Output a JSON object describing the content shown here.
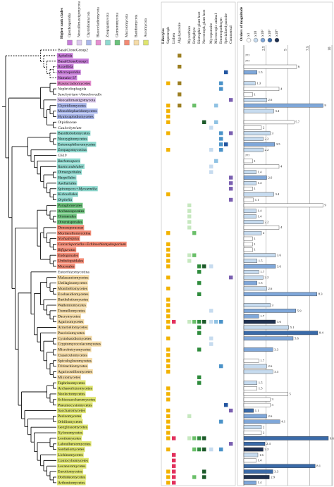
{
  "chart_data": {
    "type": "phylogeny-bar",
    "clade_header": "Higher rank clades",
    "clades": [
      {
        "name": "Opisthosporidia",
        "color": "#c77dd9"
      },
      {
        "name": "Neocallimastigomycota",
        "color": "#dccbee"
      },
      {
        "name": "Chytridiomycota",
        "color": "#a9b6ea"
      },
      {
        "name": "Blastocladiomycota",
        "color": "#e58fcf"
      },
      {
        "name": "Zoopagomycota",
        "color": "#8fd9cf"
      },
      {
        "name": "Glomeromycota",
        "color": "#6cc27c"
      },
      {
        "name": "Mucoromycota",
        "color": "#f28a74"
      },
      {
        "name": "Basidiomycota",
        "color": "#f5dca8"
      },
      {
        "name": "Ascomycota",
        "color": "#dfe56f"
      }
    ],
    "lifestyle_header": "Lifestyles",
    "lifestyles": [
      {
        "name": "Saprotroph",
        "color": "#f2b200"
      },
      {
        "name": "Lichen",
        "color": "#e2305c"
      },
      {
        "name": "Algal parasite",
        "color": "#9c7f22"
      },
      {
        "name": "Mycorrhiza",
        "color": "#c6e8bf"
      },
      {
        "name": "Endophyte",
        "color": "#6abf69"
      },
      {
        "name": "Biotrophic plant host",
        "color": "#2e8b3c"
      },
      {
        "name": "Necrotroph, plant host",
        "color": "#1d5a2a"
      },
      {
        "name": "Mycoparasite",
        "color": "#c6dbef"
      },
      {
        "name": "Microscopic animal",
        "color": "#8fc2e3"
      },
      {
        "name": "Entomopathogen",
        "color": "#4a92c8"
      },
      {
        "name": "Specialized parasite",
        "color": "#2255a0"
      },
      {
        "name": "Commensal",
        "color": "#7a5fb0"
      }
    ],
    "magnitude_header": "Orders of magnitude",
    "magnitudes": [
      {
        "name": "x1",
        "color": "#ffffff"
      },
      {
        "name": "x10",
        "color": "#c6dbef"
      },
      {
        "name": "x10²",
        "color": "#7fa7d9"
      },
      {
        "name": "x10³",
        "color": "#3a6aa8"
      },
      {
        "name": "x10⁴",
        "color": "#1f3050"
      }
    ],
    "xlim": [
      0,
      10
    ],
    "xticks": [
      2.5,
      5,
      7.5,
      10
    ],
    "taxa": [
      {
        "name": "BasalCloneGroup2"
      },
      {
        "name": "Aphelida",
        "clade": 0,
        "value": null,
        "value_label": "???",
        "lifestyles": [
          2
        ]
      },
      {
        "name": "BasalCloneGroup1",
        "clade": 0,
        "value": null,
        "value_label": "???"
      },
      {
        "name": "Rozellida",
        "clade": 0,
        "value": 6,
        "magnitude": 0,
        "lifestyles": [
          2
        ]
      },
      {
        "name": "Microsporidia",
        "clade": 0,
        "value": 1.5,
        "magnitude": 2,
        "lifestyles": [
          10
        ]
      },
      {
        "name": "Namako-37",
        "clade": 0
      },
      {
        "name": "Blastocladiomycetes",
        "clade": 3,
        "value": 1.3,
        "magnitude": 1,
        "lifestyles": [
          0,
          2,
          9
        ]
      },
      {
        "name": "Nephridiophagida",
        "value": 4,
        "magnitude": 0,
        "lifestyles": [
          9
        ]
      },
      {
        "name": "Sanchytrium+Amoeboradix",
        "italic": true,
        "value": 1,
        "magnitude": 0,
        "lifestyles": [
          2
        ]
      },
      {
        "name": "Neocallimastigomycota",
        "clade": 1,
        "value": 2.6,
        "magnitude": 1,
        "lifestyles": [
          11
        ]
      },
      {
        "name": "Chytridiomycetes",
        "clade": 2,
        "value": 9,
        "magnitude": 2,
        "lifestyles": [
          0,
          2,
          4,
          8
        ]
      },
      {
        "name": "Monoblepharidomycetes",
        "clade": 2,
        "value": 3.4,
        "magnitude": 1,
        "lifestyles": [
          0
        ]
      },
      {
        "name": "Hyaloraphidiomycetes",
        "clade": 2,
        "lifestyles": [
          0
        ]
      },
      {
        "name": "Olpidiaceae",
        "value": 5.7,
        "magnitude": 0,
        "lifestyles": [
          0,
          6,
          8
        ]
      },
      {
        "name": "Caulochytrium",
        "italic": true,
        "value": 2,
        "magnitude": 0,
        "lifestyles": [
          7
        ]
      },
      {
        "name": "Basidiobolomycetes",
        "clade": 4,
        "value": 3,
        "magnitude": 1,
        "lifestyles": [
          0,
          9,
          11
        ]
      },
      {
        "name": "Neozygitomycetes",
        "clade": 4,
        "value": 2.2,
        "magnitude": 1,
        "lifestyles": [
          9
        ]
      },
      {
        "name": "Entomophthoromycetes",
        "clade": 4,
        "value": 3.5,
        "magnitude": 2,
        "lifestyles": [
          9,
          10
        ]
      },
      {
        "name": "Zoopagomycotina",
        "clade": 4,
        "value": 2.2,
        "magnitude": 1,
        "lifestyles": [
          0,
          7,
          9
        ]
      },
      {
        "name": "GS19",
        "italic": true,
        "value": null,
        "value_label": "???"
      },
      {
        "name": "Barbatospora",
        "clade": 4,
        "italic": true,
        "value": 1,
        "magnitude": 0,
        "lifestyles": [
          8
        ]
      },
      {
        "name": "Ramicandelaber",
        "clade": 4,
        "italic": true,
        "value": 4,
        "magnitude": 0,
        "lifestyles": [
          7
        ]
      },
      {
        "name": "Dimargaritales",
        "clade": 4,
        "value": 1.4,
        "magnitude": 1,
        "lifestyles": [
          7
        ]
      },
      {
        "name": "Harpellales",
        "clade": 4,
        "value": 2.6,
        "magnitude": 2,
        "lifestyles": [
          11
        ]
      },
      {
        "name": "Asellariales",
        "clade": 4,
        "value": 1.4,
        "magnitude": 1,
        "lifestyles": [
          11
        ]
      },
      {
        "name": "Spiromyces+Mycoemilia",
        "clade": 4,
        "italic": true,
        "value": 1,
        "magnitude": 0,
        "lifestyles": [
          11
        ]
      },
      {
        "name": "Kickxellales",
        "clade": 4,
        "value": 3.4,
        "magnitude": 1,
        "lifestyles": [
          0
        ]
      },
      {
        "name": "Orphella",
        "clade": 4,
        "italic": true,
        "value": 1.1,
        "magnitude": 0,
        "lifestyles": [
          11
        ]
      },
      {
        "name": "Paraglomerales",
        "clade": 5,
        "value": 9,
        "magnitude": 0,
        "lifestyles": [
          3
        ]
      },
      {
        "name": "Archaeosporales",
        "clade": 5,
        "value": 1.4,
        "magnitude": 1,
        "lifestyles": [
          3
        ]
      },
      {
        "name": "Glomerales",
        "clade": 5,
        "value": 1.4,
        "magnitude": 1,
        "lifestyles": [
          3
        ]
      },
      {
        "name": "Diversisporales",
        "clade": 5,
        "value": 2.2,
        "magnitude": 1,
        "lifestyles": [
          3
        ]
      },
      {
        "name": "Densosporaceae",
        "clade": 6,
        "value": 4,
        "magnitude": 0,
        "lifestyles": [
          3
        ]
      },
      {
        "name": "Mortierellomycotina",
        "clade": 6,
        "value": 2,
        "magnitude": 1,
        "lifestyles": [
          0,
          4
        ]
      },
      {
        "name": "Nothadelphia",
        "clade": 6,
        "italic": true,
        "value": 1,
        "magnitude": 0
      },
      {
        "name": "Calcarisporiella+Echinochlamydosporium",
        "clade": 6,
        "italic": true,
        "value": 1,
        "magnitude": 0,
        "lifestyles": [
          0
        ]
      },
      {
        "name": "Bifiguratus",
        "clade": 6,
        "italic": true,
        "value": 1,
        "magnitude": 0,
        "lifestyles": [
          0
        ]
      },
      {
        "name": "Endogonales",
        "clade": 6,
        "value": 3.6,
        "magnitude": 1,
        "lifestyles": [
          0,
          3,
          4
        ]
      },
      {
        "name": "Umbelopsidales",
        "clade": 6,
        "value": 1.5,
        "magnitude": 1,
        "lifestyles": [
          0,
          3
        ]
      },
      {
        "name": "Mucorales",
        "clade": 6,
        "value": 3.6,
        "magnitude": 2,
        "lifestyles": [
          0,
          5,
          6,
          7
        ]
      },
      {
        "name": "Entorrhizomycotina",
        "value": 1.7,
        "magnitude": 1,
        "lifestyles": [
          5
        ]
      },
      {
        "name": "Malasseziomycetes",
        "clade": 7,
        "value": 2.2,
        "magnitude": 1,
        "lifestyles": [
          0,
          11
        ]
      },
      {
        "name": "Ustilaginomycetes",
        "clade": 7,
        "value": 1.5,
        "magnitude": 2,
        "lifestyles": [
          5
        ]
      },
      {
        "name": "Moniliellomycetes",
        "clade": 7,
        "value": 2.6,
        "magnitude": 1,
        "lifestyles": [
          0
        ]
      },
      {
        "name": "Exobasidiomycetes",
        "clade": 7,
        "value": 8.3,
        "magnitude": 2,
        "lifestyles": [
          5
        ]
      },
      {
        "name": "Bartheletiomycetes",
        "clade": 7,
        "lifestyles": [
          0
        ]
      },
      {
        "name": "Wallemiomycetes",
        "clade": 7,
        "value": 3,
        "magnitude": 1,
        "lifestyles": [
          0
        ]
      },
      {
        "name": "Tremellomycetes",
        "clade": 7,
        "value": 5.9,
        "magnitude": 2,
        "lifestyles": [
          0,
          7
        ]
      },
      {
        "name": "Dacrymycetes",
        "clade": 7,
        "value": 1.7,
        "magnitude": 2,
        "lifestyles": [
          0
        ]
      },
      {
        "name": "Agaricomycetes",
        "clade": 7,
        "value": 3.6,
        "magnitude": 4,
        "lifestyles": [
          0,
          1,
          3,
          4,
          5,
          6,
          7,
          8,
          9
        ]
      },
      {
        "name": "Atractiellomycetes",
        "clade": 7,
        "value": 5.1,
        "magnitude": 1,
        "lifestyles": [
          0,
          5
        ]
      },
      {
        "name": "Pucciniomycetes",
        "clade": 7,
        "value": 8.4,
        "magnitude": 3,
        "lifestyles": [
          5
        ]
      },
      {
        "name": "Cystobasidiomycetes",
        "clade": 7,
        "value": 5.6,
        "magnitude": 2,
        "lifestyles": [
          0,
          7
        ]
      },
      {
        "name": "Cryptomycocolacomycetes",
        "clade": 7,
        "lifestyles": [
          7
        ]
      },
      {
        "name": "Microbotryomycetes",
        "clade": 7,
        "value": 3.3,
        "magnitude": 2,
        "lifestyles": [
          0,
          5
        ]
      },
      {
        "name": "Classiculomycetes",
        "clade": 7,
        "lifestyles": [
          0
        ]
      },
      {
        "name": "Spiculogloeomycetes",
        "clade": 7,
        "value": 1.7,
        "magnitude": 0,
        "lifestyles": [
          0
        ]
      },
      {
        "name": "Tritirachiomycetes",
        "clade": 7,
        "value": 2.6,
        "magnitude": 1,
        "lifestyles": [
          0,
          9
        ]
      },
      {
        "name": "Agaricostilbomycetes",
        "clade": 7,
        "value": 3.3,
        "magnitude": 1,
        "lifestyles": [
          0
        ]
      },
      {
        "name": "Mixiomycetes",
        "clade": 7,
        "lifestyles": [
          5
        ]
      },
      {
        "name": "Taphrinomycetes",
        "clade": 8,
        "value": 1.5,
        "magnitude": 1,
        "lifestyles": [
          5
        ]
      },
      {
        "name": "Archaeorhizomycetes",
        "clade": 8,
        "value": 1.5,
        "magnitude": 0,
        "lifestyles": [
          0
        ]
      },
      {
        "name": "Neolectomycetes",
        "clade": 8,
        "value": 5,
        "magnitude": 0,
        "lifestyles": [
          0
        ]
      },
      {
        "name": "Schizosaccharomycetes",
        "clade": 8,
        "value": 3,
        "magnitude": 0,
        "lifestyles": [
          0
        ]
      },
      {
        "name": "Pneumocystomycetes",
        "clade": 8,
        "value": 3,
        "magnitude": 0,
        "lifestyles": [
          10
        ]
      },
      {
        "name": "Saccharomycetes",
        "clade": 8,
        "value": 1.1,
        "magnitude": 3,
        "lifestyles": [
          0,
          11
        ]
      },
      {
        "name": "Pezizomycetes",
        "clade": 8,
        "value": 2.6,
        "magnitude": 2,
        "lifestyles": [
          0,
          3
        ]
      },
      {
        "name": "Orbiliomycetes",
        "clade": 8,
        "value": 4.1,
        "magnitude": 2,
        "lifestyles": [
          0,
          9
        ]
      },
      {
        "name": "Geoglossomycetes",
        "clade": 8,
        "value": 2,
        "magnitude": 1,
        "lifestyles": [
          0
        ]
      },
      {
        "name": "Xylonomycetes",
        "clade": 8,
        "value": 2,
        "magnitude": 0,
        "lifestyles": [
          0
        ]
      },
      {
        "name": "Leotiomycetes",
        "clade": 8,
        "value": 9.6,
        "magnitude": 3,
        "lifestyles": [
          0,
          1,
          3,
          4,
          5,
          6
        ]
      },
      {
        "name": "Laboulbeniomycetes",
        "clade": 8,
        "value": 2.4,
        "magnitude": 3,
        "lifestyles": [
          11
        ]
      },
      {
        "name": "Sordariomycetes",
        "clade": 8,
        "value": 2.2,
        "magnitude": 4,
        "lifestyles": [
          0,
          4,
          5,
          6,
          7,
          9
        ]
      },
      {
        "name": "Lichinomycetes",
        "clade": 8,
        "value": 1.6,
        "magnitude": 1,
        "lifestyles": [
          1
        ]
      },
      {
        "name": "Coniocybomycetes",
        "clade": 8,
        "value": 1.4,
        "magnitude": 0,
        "lifestyles": [
          1
        ]
      },
      {
        "name": "Lecanoromycetes",
        "clade": 8,
        "value": 8.1,
        "magnitude": 3,
        "lifestyles": [
          1
        ]
      },
      {
        "name": "Eurotiomycetes",
        "clade": 8,
        "value": 3.3,
        "magnitude": 3,
        "lifestyles": [
          0,
          1,
          6
        ]
      },
      {
        "name": "Dothideomycetes",
        "clade": 8,
        "value": 2.9,
        "magnitude": 4,
        "lifestyles": [
          0,
          1,
          4,
          6
        ]
      },
      {
        "name": "Arthoniomycetes",
        "clade": 8,
        "value": 1.4,
        "magnitude": 2,
        "lifestyles": [
          0,
          1
        ]
      }
    ]
  }
}
